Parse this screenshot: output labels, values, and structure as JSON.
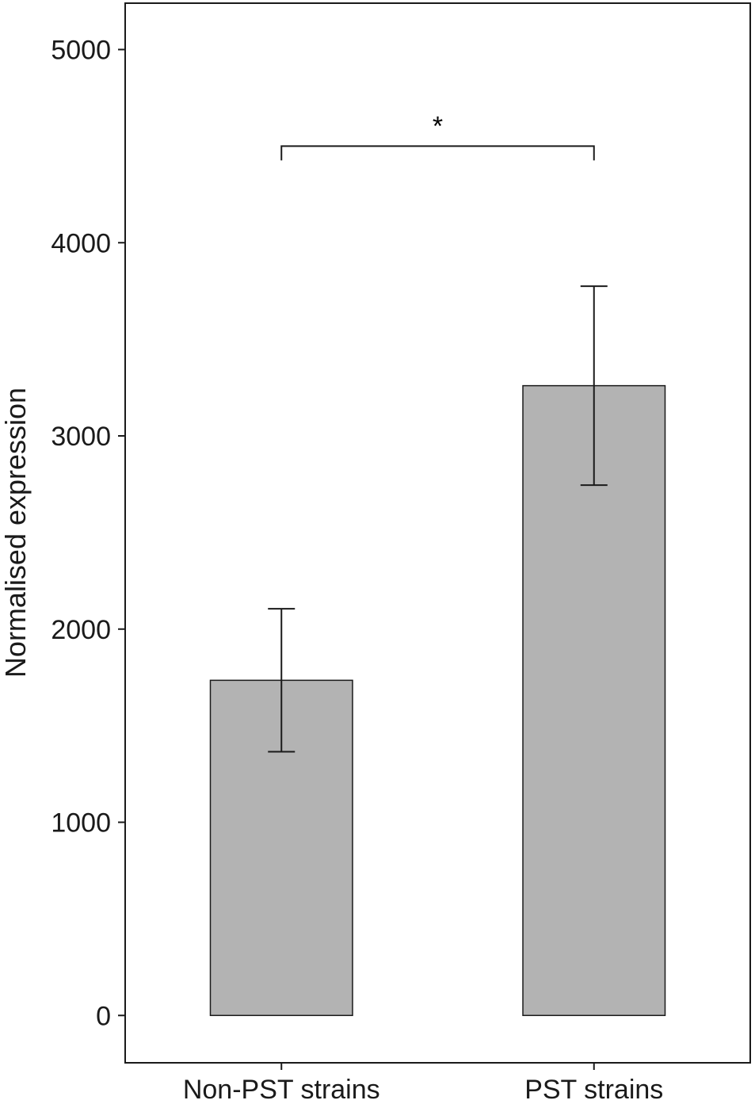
{
  "chart_data": {
    "type": "bar",
    "categories": [
      "Non-PST strains",
      "PST strains"
    ],
    "values": [
      1735,
      3260
    ],
    "error_bars": [
      {
        "lower": 1365,
        "upper": 2105
      },
      {
        "lower": 2745,
        "upper": 3775
      }
    ],
    "ylabel": "Normalised expression",
    "xlabel": "",
    "ylim": [
      -245,
      5240
    ],
    "yticks": [
      0,
      1000,
      2000,
      3000,
      4000,
      5000
    ],
    "ytick_labels": [
      "0",
      "1000",
      "2000",
      "3000",
      "4000",
      "5000"
    ],
    "bar_color": "#b3b3b3",
    "significance": {
      "from": 0,
      "to": 1,
      "y": 4500,
      "label": "*"
    }
  }
}
